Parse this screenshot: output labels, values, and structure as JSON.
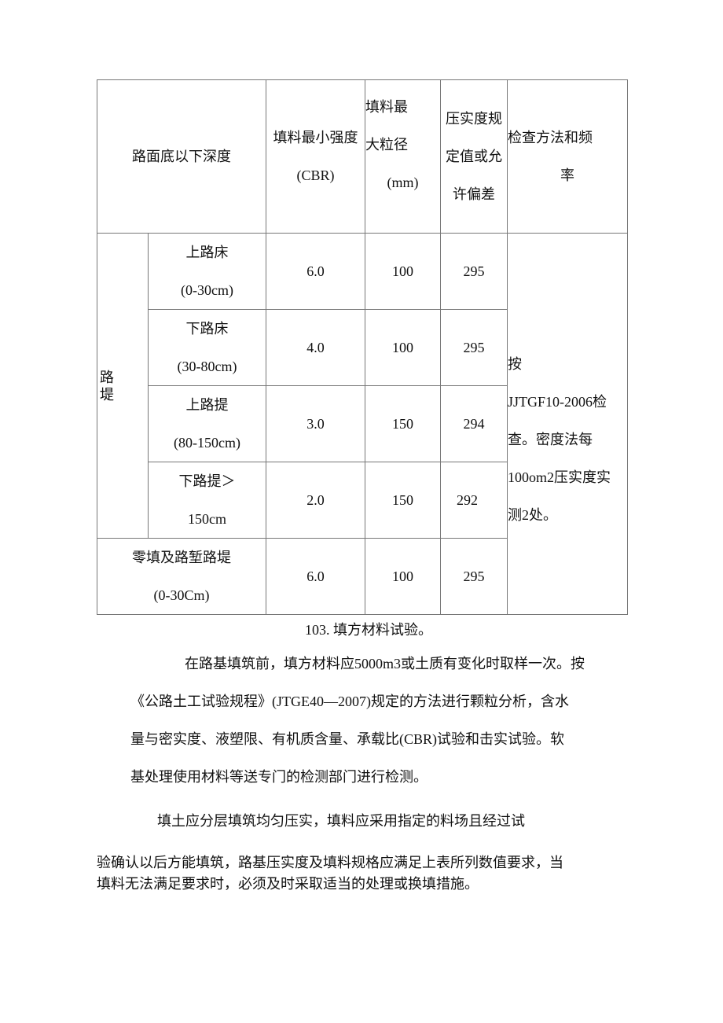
{
  "table": {
    "headers": {
      "depth": "路面底以下深度",
      "cbr": [
        "填料最小强度",
        "(CBR)"
      ],
      "size": [
        "填料最",
        "大粒径",
        "(mm)"
      ],
      "compaction": [
        "压实度规",
        "定值或允",
        "许偏差"
      ],
      "method": [
        "检查方法和频",
        "率"
      ]
    },
    "group_label": [
      "路",
      "堤"
    ],
    "rows": [
      {
        "depth": [
          "上路床",
          "(0-30cm)"
        ],
        "cbr": "6.0",
        "size": "100",
        "compaction": "295"
      },
      {
        "depth": [
          "下路床",
          "(30-80cm)"
        ],
        "cbr": "4.0",
        "size": "100",
        "compaction": "295"
      },
      {
        "depth": [
          "上路提",
          "(80-150cm)"
        ],
        "cbr": "3.0",
        "size": "150",
        "compaction": "294"
      },
      {
        "depth": [
          "下路提＞",
          "150cm"
        ],
        "cbr": "2.0",
        "size": "150",
        "compaction": "292"
      },
      {
        "depth": [
          "零填及路堑路堤",
          "(0-30Cm)"
        ],
        "cbr": "6.0",
        "size": "100",
        "compaction": "295"
      }
    ],
    "method_text": [
      "按",
      "JJTGF10-2006检",
      "查。密度法每",
      "100om2压实度实",
      "测2处。"
    ]
  },
  "section_title": "103. 填方材料试验。",
  "paragraph1": [
    "在路基填筑前，填方材料应5000m3或土质有变化时取样一次。按",
    "《公路土工试验规程》(JTGE40—2007)规定的方法进行颗粒分析，含水",
    "量与密实度、液塑限、有机质含量、承载比(CBR)试验和击实试验。软",
    "基处理使用材料等送专门的检测部门进行检测。"
  ],
  "paragraph2": [
    "填土应分层填筑均匀压实，填料应采用指定的料场且经过试",
    "验确认以后方能填筑，路基压实度及填料规格应满足上表所列数值要求，当",
    "填料无法满足要求时，必须及时采取适当的处理或换填措施。"
  ]
}
